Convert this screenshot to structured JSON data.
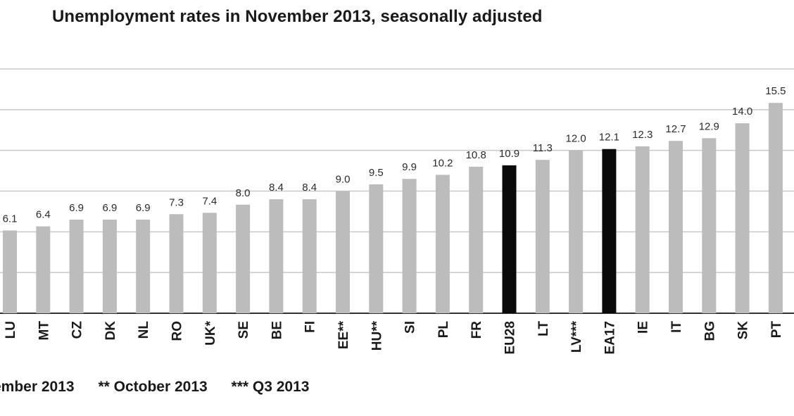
{
  "chart_data": {
    "type": "bar",
    "title": "Unemployment rates in November 2013, seasonally adjusted",
    "xlabel": "",
    "ylabel": "",
    "ylim": [
      0,
      18
    ],
    "grid": true,
    "categories": [
      "LU",
      "MT",
      "CZ",
      "DK",
      "NL",
      "RO",
      "UK*",
      "SE",
      "BE",
      "FI",
      "EE**",
      "HU**",
      "SI",
      "PL",
      "FR",
      "EU28",
      "LT",
      "LV***",
      "EA17",
      "IE",
      "IT",
      "BG",
      "SK",
      "PT"
    ],
    "values": [
      6.1,
      6.4,
      6.9,
      6.9,
      6.9,
      7.3,
      7.4,
      8.0,
      8.4,
      8.4,
      9.0,
      9.5,
      9.9,
      10.2,
      10.8,
      10.9,
      11.3,
      12.0,
      12.1,
      12.3,
      12.7,
      12.9,
      14.0,
      15.5
    ],
    "value_labels": [
      "6.1",
      "6.4",
      "6.9",
      "6.9",
      "6.9",
      "7.3",
      "7.4",
      "8.0",
      "8.4",
      "8.4",
      "9.0",
      "9.5",
      "9.9",
      "10.2",
      "10.8",
      "10.9",
      "11.3",
      "12.0",
      "12.1",
      "12.3",
      "12.7",
      "12.9",
      "14.0",
      "15.5"
    ],
    "highlighted": [
      "EU28",
      "EA17"
    ],
    "colors": {
      "bar": "#bcbcbc",
      "highlight": "#0a0a0a",
      "grid": "#c8c8c8",
      "axis": "#333333"
    }
  },
  "footnotes": [
    "ember 2013",
    "** October 2013",
    "*** Q3 2013"
  ]
}
